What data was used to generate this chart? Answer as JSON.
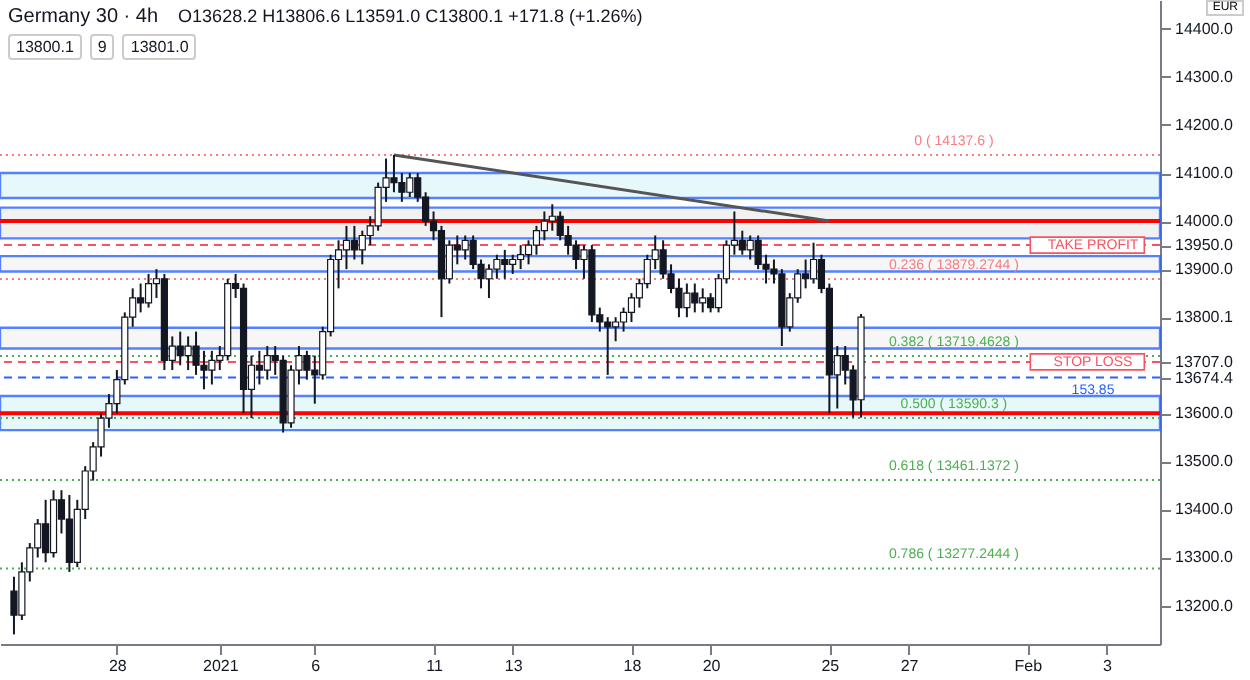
{
  "chart_data": {
    "type": "candlestick",
    "title": "Germany 30 · 4h",
    "subtitle": "O13628.2 H13806.6 L13591.0 C13800.1 +171.8 (+1.26%)",
    "ylabel": "EUR",
    "annotations": [
      "13800.1",
      "9",
      "13801.0",
      {
        "text": "153.85",
        "y": 13674.4
      }
    ],
    "categories": [
      null,
      null,
      null,
      null,
      null,
      null,
      null,
      null,
      null,
      null,
      null,
      null,
      null,
      "28",
      null,
      null,
      null,
      null,
      null,
      null,
      null,
      null,
      null,
      null,
      null,
      null,
      "2021",
      null,
      null,
      null,
      null,
      null,
      null,
      null,
      null,
      null,
      null,
      null,
      "6",
      null,
      null,
      null,
      null,
      null,
      null,
      null,
      null,
      null,
      null,
      null,
      null,
      null,
      null,
      "11",
      null,
      null,
      null,
      null,
      null,
      null,
      null,
      null,
      null,
      "13",
      null,
      null,
      null,
      null,
      null,
      null,
      null,
      null,
      null,
      null,
      null,
      null,
      null,
      null,
      "18",
      null,
      null,
      null,
      null,
      null,
      null,
      null,
      null,
      null,
      "20",
      null,
      null,
      null,
      null,
      null,
      null,
      null,
      null,
      null,
      null,
      null,
      null,
      null,
      null,
      "25",
      null,
      null,
      null,
      null,
      null,
      null,
      null,
      null,
      null,
      "27",
      null,
      null,
      null,
      null,
      null,
      null,
      null,
      null,
      null,
      null,
      null,
      null,
      null,
      null,
      "Feb",
      null,
      null,
      null,
      null,
      null,
      null,
      null,
      null,
      null,
      "3",
      null,
      null,
      null,
      null,
      null
    ],
    "ohlc": [
      [
        13230,
        13260,
        13140,
        13180
      ],
      [
        13180,
        13290,
        13170,
        13270
      ],
      [
        13270,
        13330,
        13250,
        13320
      ],
      [
        13320,
        13380,
        13300,
        13370
      ],
      [
        13370,
        13420,
        13290,
        13310
      ],
      [
        13310,
        13440,
        13300,
        13420
      ],
      [
        13420,
        13440,
        13350,
        13380
      ],
      [
        13380,
        13430,
        13270,
        13290
      ],
      [
        13290,
        13420,
        13280,
        13400
      ],
      [
        13400,
        13490,
        13380,
        13480
      ],
      [
        13480,
        13540,
        13460,
        13530
      ],
      [
        13530,
        13600,
        13510,
        13590
      ],
      [
        13590,
        13640,
        13570,
        13620
      ],
      [
        13620,
        13690,
        13600,
        13670
      ],
      [
        13670,
        13810,
        13660,
        13800
      ],
      [
        13800,
        13860,
        13780,
        13840
      ],
      [
        13840,
        13870,
        13810,
        13830
      ],
      [
        13830,
        13890,
        13820,
        13870
      ],
      [
        13870,
        13900,
        13840,
        13880
      ],
      [
        13880,
        13890,
        13690,
        13710
      ],
      [
        13710,
        13760,
        13690,
        13740
      ],
      [
        13740,
        13770,
        13700,
        13720
      ],
      [
        13720,
        13760,
        13690,
        13740
      ],
      [
        13740,
        13770,
        13680,
        13700
      ],
      [
        13700,
        13730,
        13650,
        13690
      ],
      [
        13690,
        13730,
        13660,
        13710
      ],
      [
        13710,
        13740,
        13690,
        13720
      ],
      [
        13720,
        13880,
        13710,
        13870
      ],
      [
        13870,
        13890,
        13840,
        13860
      ],
      [
        13860,
        13870,
        13600,
        13650
      ],
      [
        13650,
        13720,
        13590,
        13700
      ],
      [
        13700,
        13730,
        13660,
        13690
      ],
      [
        13690,
        13740,
        13670,
        13720
      ],
      [
        13720,
        13740,
        13680,
        13710
      ],
      [
        13710,
        13720,
        13560,
        13580
      ],
      [
        13580,
        13700,
        13570,
        13690
      ],
      [
        13690,
        13740,
        13660,
        13720
      ],
      [
        13720,
        13730,
        13670,
        13690
      ],
      [
        13690,
        13720,
        13620,
        13680
      ],
      [
        13680,
        13780,
        13670,
        13770
      ],
      [
        13770,
        13930,
        13760,
        13920
      ],
      [
        13920,
        13960,
        13860,
        13940
      ],
      [
        13940,
        13990,
        13900,
        13960
      ],
      [
        13960,
        13990,
        13920,
        13940
      ],
      [
        13940,
        13980,
        13910,
        13970
      ],
      [
        13970,
        14010,
        13950,
        13990
      ],
      [
        13990,
        14080,
        13980,
        14070
      ],
      [
        14070,
        14130,
        14040,
        14090
      ],
      [
        14090,
        14137.6,
        14060,
        14080
      ],
      [
        14080,
        14100,
        14040,
        14060
      ],
      [
        14060,
        14100,
        14050,
        14090
      ],
      [
        14090,
        14100,
        14040,
        14050
      ],
      [
        14050,
        14060,
        13990,
        14000
      ],
      [
        14000,
        14020,
        13960,
        13980
      ],
      [
        13980,
        13990,
        13800,
        13880
      ],
      [
        13880,
        13960,
        13870,
        13950
      ],
      [
        13950,
        13970,
        13910,
        13940
      ],
      [
        13940,
        13970,
        13920,
        13960
      ],
      [
        13960,
        13970,
        13900,
        13910
      ],
      [
        13910,
        13920,
        13860,
        13880
      ],
      [
        13880,
        13910,
        13840,
        13900
      ],
      [
        13900,
        13930,
        13880,
        13920
      ],
      [
        13920,
        13940,
        13880,
        13910
      ],
      [
        13910,
        13930,
        13890,
        13920
      ],
      [
        13920,
        13950,
        13900,
        13930
      ],
      [
        13930,
        13960,
        13910,
        13950
      ],
      [
        13950,
        13990,
        13930,
        13980
      ],
      [
        13980,
        14020,
        13960,
        14000
      ],
      [
        14000,
        14035,
        13980,
        14010
      ],
      [
        14010,
        14020,
        13960,
        13970
      ],
      [
        13970,
        13990,
        13930,
        13950
      ],
      [
        13950,
        13960,
        13900,
        13920
      ],
      [
        13920,
        13950,
        13880,
        13940
      ],
      [
        13940,
        13950,
        13790,
        13805
      ],
      [
        13805,
        13820,
        13770,
        13790
      ],
      [
        13790,
        13800,
        13680,
        13780
      ],
      [
        13780,
        13800,
        13750,
        13790
      ],
      [
        13790,
        13820,
        13770,
        13810
      ],
      [
        13810,
        13850,
        13790,
        13840
      ],
      [
        13840,
        13880,
        13820,
        13870
      ],
      [
        13870,
        13930,
        13860,
        13920
      ],
      [
        13920,
        13970,
        13900,
        13940
      ],
      [
        13940,
        13960,
        13880,
        13890
      ],
      [
        13890,
        13910,
        13850,
        13860
      ],
      [
        13860,
        13880,
        13800,
        13820
      ],
      [
        13820,
        13870,
        13800,
        13850
      ],
      [
        13850,
        13870,
        13810,
        13830
      ],
      [
        13830,
        13860,
        13810,
        13840
      ],
      [
        13840,
        13850,
        13810,
        13820
      ],
      [
        13820,
        13890,
        13810,
        13880
      ],
      [
        13880,
        13960,
        13870,
        13950
      ],
      [
        13950,
        14020,
        13930,
        13960
      ],
      [
        13960,
        13980,
        13930,
        13940
      ],
      [
        13940,
        13970,
        13920,
        13960
      ],
      [
        13960,
        13970,
        13900,
        13910
      ],
      [
        13910,
        13930,
        13870,
        13900
      ],
      [
        13900,
        13920,
        13870,
        13890
      ],
      [
        13890,
        13900,
        13740,
        13780
      ],
      [
        13780,
        13850,
        13770,
        13840
      ],
      [
        13840,
        13900,
        13830,
        13890
      ],
      [
        13890,
        13920,
        13860,
        13880
      ],
      [
        13880,
        13955,
        13870,
        13920
      ],
      [
        13920,
        13930,
        13850,
        13860
      ],
      [
        13860,
        13870,
        13600,
        13680
      ],
      [
        13680,
        13740,
        13610,
        13720
      ],
      [
        13720,
        13740,
        13660,
        13690
      ],
      [
        13690,
        13700,
        13591,
        13628
      ],
      [
        13628.2,
        13806.6,
        13591.0,
        13800.1
      ],
      null,
      null,
      null,
      null,
      null,
      null,
      null,
      null,
      null,
      null,
      null,
      null,
      null,
      null,
      null,
      null,
      null,
      null,
      null,
      null,
      null,
      null,
      null,
      null,
      null,
      null,
      null,
      null,
      null,
      null,
      null,
      null,
      null,
      null,
      null,
      null
    ],
    "series": [
      {
        "type": "line",
        "values": [
          null,
          null,
          null,
          null,
          null,
          null,
          null,
          null,
          null,
          null,
          null,
          null,
          null,
          null,
          null,
          null,
          null,
          null,
          null,
          null,
          null,
          null,
          null,
          null,
          null,
          null,
          null,
          null,
          null,
          null,
          null,
          null,
          null,
          null,
          null,
          null,
          null,
          null,
          null,
          null,
          null,
          null,
          null,
          null,
          null,
          null,
          null,
          null,
          14137.6,
          null,
          null,
          null,
          null,
          null,
          null,
          null,
          null,
          null,
          null,
          null,
          null,
          null,
          null,
          null,
          null,
          null,
          null,
          null,
          null,
          null,
          null,
          null,
          null,
          null,
          null,
          null,
          null,
          null,
          null,
          null,
          null,
          null,
          null,
          null,
          null,
          null,
          null,
          null,
          null,
          null,
          null,
          null,
          null,
          null,
          null,
          null,
          null,
          null,
          null,
          null,
          null,
          null,
          null,
          14000,
          null,
          null,
          null,
          null,
          null,
          null,
          null,
          null,
          null,
          null,
          null,
          null,
          null,
          null,
          null,
          null,
          null,
          null,
          null,
          null,
          null,
          null,
          null,
          null,
          null,
          null,
          null,
          null,
          null,
          null,
          null,
          null,
          null,
          null,
          null,
          null,
          null,
          null,
          null,
          null
        ],
        "color": "#555555"
      }
    ],
    "ylim": [
      13120,
      14460
    ],
    "yticks": [
      {
        "value": 14400,
        "label": "14400.0"
      },
      {
        "value": 14300,
        "label": "14300.0"
      },
      {
        "value": 14200,
        "label": "14200.0"
      },
      {
        "value": 14100,
        "label": "14100.0"
      },
      {
        "value": 14000,
        "label": "14000.0"
      },
      {
        "value": 13950,
        "label": "13950.0"
      },
      {
        "value": 13900,
        "label": "13900.0"
      },
      {
        "value": 13800.1,
        "label": "13800.1"
      },
      {
        "value": 13707,
        "label": "13707.0"
      },
      {
        "value": 13674.4,
        "label": "13674.4"
      },
      {
        "value": 13600,
        "label": "13600.0"
      },
      {
        "value": 13500,
        "label": "13500.0"
      },
      {
        "value": 13400,
        "label": "13400.0"
      },
      {
        "value": 13300,
        "label": "13300.0"
      },
      {
        "value": 13200,
        "label": "13200.0"
      }
    ],
    "bands": [
      {
        "axis": "y",
        "from": 14048,
        "to": 14100,
        "color": "#e0f7fa"
      },
      {
        "axis": "y",
        "from": 13964,
        "to": 14028,
        "color": "#eeeeee"
      },
      {
        "axis": "y",
        "from": 13895,
        "to": 13927,
        "color": "#f5f5f5"
      },
      {
        "axis": "y",
        "from": 13735,
        "to": 13778,
        "color": "#f5f5f5"
      },
      {
        "axis": "y",
        "from": 13565,
        "to": 13636,
        "color": "#e0f7fa"
      }
    ],
    "ref_lines": [
      {
        "axis": "y",
        "value": 14137.6,
        "label": "0 ( 14137.6 )",
        "color": "#f77c80",
        "line_style": "dotted"
      },
      {
        "axis": "y",
        "value": 13879.2744,
        "label": "0.236 ( 13879.2744 )",
        "color": "#f77c80",
        "line_style": "dotted"
      },
      {
        "axis": "y",
        "value": 13719.4628,
        "label": "0.382 ( 13719.4628 )",
        "color": "#4caf50",
        "line_style": "dotted"
      },
      {
        "axis": "y",
        "value": 13590.3,
        "label": "0.500 ( 13590.3 )",
        "color": "#4caf50",
        "line_style": "dotted"
      },
      {
        "axis": "y",
        "value": 13461.1372,
        "label": "0.618 ( 13461.1372 )",
        "color": "#4caf50",
        "line_style": "dotted"
      },
      {
        "axis": "y",
        "value": 13277.2444,
        "label": "0.786 ( 13277.2444 )",
        "color": "#4caf50",
        "line_style": "dotted"
      },
      {
        "axis": "y",
        "value": 13950,
        "label": "TAKE PROFIT",
        "color": "#f7525f",
        "line_style": "dashed"
      },
      {
        "axis": "y",
        "value": 13707,
        "label": "STOP LOSS",
        "color": "#f7525f",
        "line_style": "dashed"
      },
      {
        "axis": "y",
        "value": 13674.4,
        "color": "#2962ff",
        "line_style": "dashed"
      },
      {
        "axis": "y",
        "value": 14000,
        "color": "#ff0000",
        "line_style": "solid"
      },
      {
        "axis": "y",
        "value": 13600,
        "color": "#ff0000",
        "line_style": "solid"
      }
    ]
  }
}
